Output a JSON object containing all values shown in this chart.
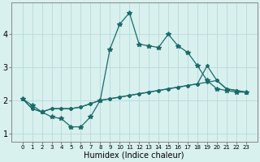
{
  "xlabel": "Humidex (Indice chaleur)",
  "bg_color": "#d8f0ee",
  "grid_color": "#b8dada",
  "line_color": "#1a6b6b",
  "x": [
    0,
    1,
    2,
    3,
    4,
    5,
    6,
    7,
    8,
    9,
    10,
    11,
    12,
    13,
    14,
    15,
    16,
    17,
    18,
    19,
    20,
    21,
    22,
    23
  ],
  "line1": [
    2.05,
    1.85,
    1.65,
    1.5,
    1.45,
    1.2,
    1.2,
    1.5,
    2.0,
    3.55,
    4.3,
    4.65,
    3.7,
    3.65,
    3.6,
    4.0,
    3.65,
    3.45,
    3.05,
    2.6,
    2.35,
    2.3,
    2.25,
    2.25
  ],
  "line2": [
    2.05,
    1.75,
    1.65,
    1.75,
    1.75,
    1.75,
    1.8,
    1.9,
    2.0,
    2.05,
    2.1,
    2.15,
    2.2,
    2.25,
    2.3,
    2.35,
    2.4,
    2.45,
    2.5,
    2.55,
    2.6,
    2.35,
    2.3,
    2.25
  ],
  "line3": [
    2.05,
    1.75,
    1.65,
    1.75,
    1.75,
    1.75,
    1.8,
    1.9,
    2.0,
    2.05,
    2.1,
    2.15,
    2.2,
    2.25,
    2.3,
    2.35,
    2.4,
    2.45,
    2.5,
    3.05,
    2.6,
    2.35,
    2.3,
    2.25
  ],
  "ylim_min": 0.75,
  "ylim_max": 4.95,
  "yticks": [
    1,
    2,
    3,
    4
  ],
  "xticks": [
    0,
    1,
    2,
    3,
    4,
    5,
    6,
    7,
    8,
    9,
    10,
    11,
    12,
    13,
    14,
    15,
    16,
    17,
    18,
    19,
    20,
    21,
    22,
    23
  ],
  "xlabel_fontsize": 7,
  "ytick_fontsize": 7,
  "xtick_fontsize": 5
}
